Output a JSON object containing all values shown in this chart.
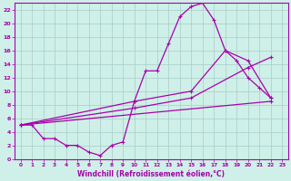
{
  "title": "",
  "xlabel": "Windchill (Refroidissement éolien,°C)",
  "background_color": "#cef0e8",
  "grid_color": "#aaccc8",
  "line_color": "#aa00aa",
  "xlim": [
    -0.5,
    23.5
  ],
  "ylim": [
    0,
    23
  ],
  "xticks": [
    0,
    1,
    2,
    3,
    4,
    5,
    6,
    7,
    8,
    9,
    10,
    11,
    12,
    13,
    14,
    15,
    16,
    17,
    18,
    19,
    20,
    21,
    22,
    23
  ],
  "yticks": [
    0,
    2,
    4,
    6,
    8,
    10,
    12,
    14,
    16,
    18,
    20,
    22
  ],
  "series1_x": [
    0,
    1,
    2,
    3,
    4,
    5,
    6,
    7,
    8,
    9,
    10,
    11,
    12,
    13,
    14,
    15,
    16,
    17,
    18,
    19,
    20,
    21,
    22
  ],
  "series1_y": [
    5,
    5,
    3,
    3,
    2,
    2,
    1,
    0.5,
    2,
    2.5,
    8.5,
    13,
    13,
    17,
    21,
    22.5,
    23,
    20.5,
    16,
    14.5,
    12,
    10.5,
    9
  ],
  "series2_x": [
    0,
    10,
    15,
    18,
    20,
    22
  ],
  "series2_y": [
    5,
    8.5,
    10,
    16,
    14.5,
    9
  ],
  "series3_x": [
    0,
    10,
    15,
    20,
    22
  ],
  "series3_y": [
    5,
    7.5,
    9,
    13.5,
    15
  ],
  "series4_x": [
    0,
    22
  ],
  "series4_y": [
    5,
    8.5
  ]
}
